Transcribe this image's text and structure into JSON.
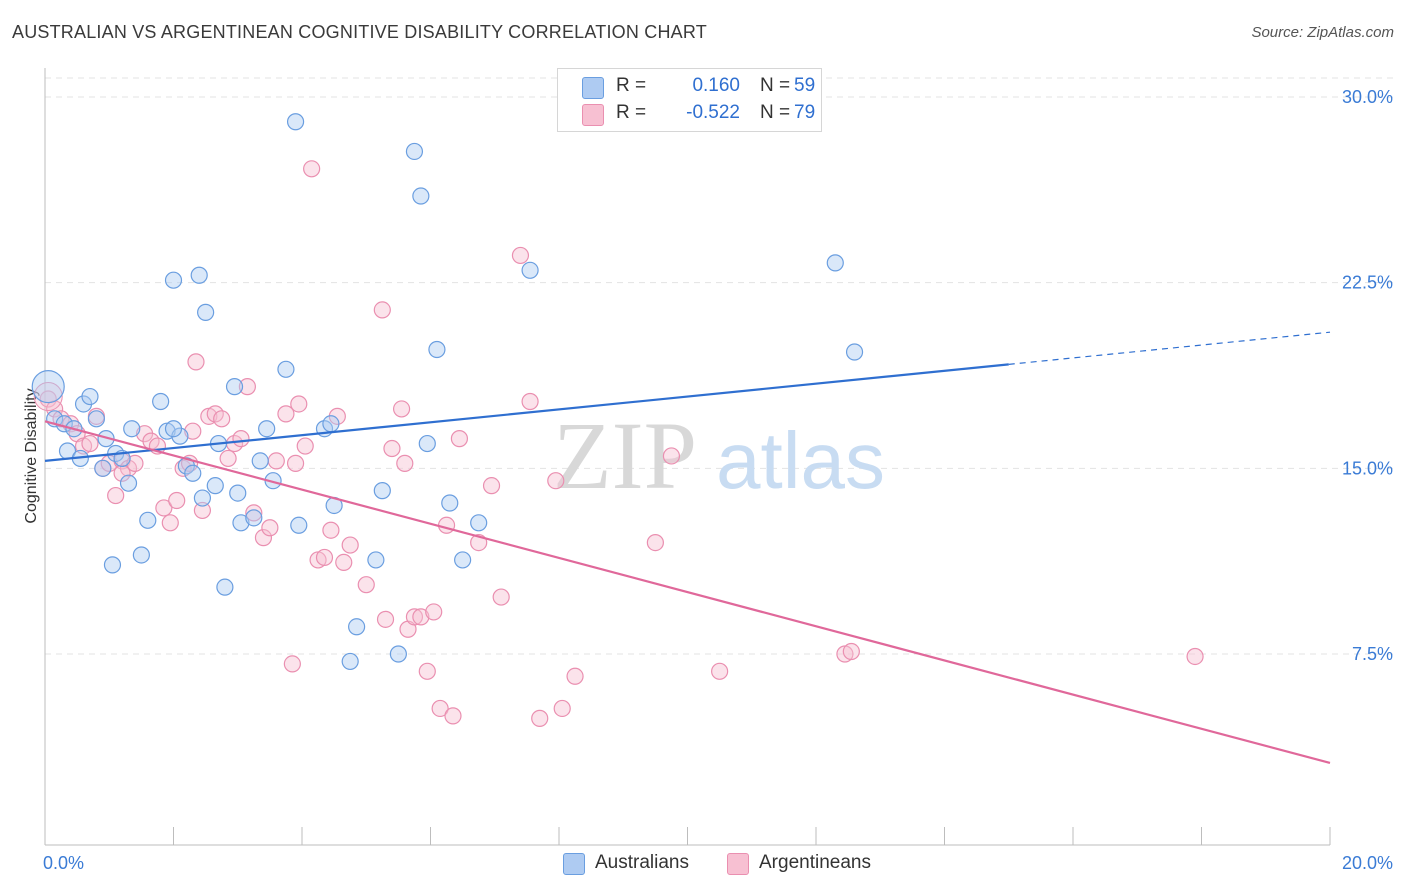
{
  "header": {
    "title": "AUSTRALIAN VS ARGENTINEAN COGNITIVE DISABILITY CORRELATION CHART",
    "source": "Source: ZipAtlas.com"
  },
  "legend": {
    "rows": [
      {
        "r_label": "R =",
        "r_value": "0.160",
        "n_label": "N =",
        "n_value": "59"
      },
      {
        "r_label": "R =",
        "r_value": "-0.522",
        "n_label": "N =",
        "n_value": "79"
      }
    ],
    "series_names": [
      "Australians",
      "Argentineans"
    ]
  },
  "watermark": {
    "zip": "ZIP",
    "atlas": "atlas"
  },
  "colors": {
    "blue_fill": "#aecbf2",
    "blue_stroke": "#6a9ee0",
    "blue_line": "#2f6fd0",
    "pink_fill": "#f7c0d2",
    "pink_stroke": "#ea8fb0",
    "pink_line": "#e0689a",
    "grid": "#e3e3e3",
    "axis_text": "#3a7bd5"
  },
  "chart_data": {
    "type": "scatter",
    "title": "AUSTRALIAN VS ARGENTINEAN COGNITIVE DISABILITY CORRELATION CHART",
    "xlabel": "",
    "ylabel": "Cognitive Disability",
    "xlim": [
      0,
      20
    ],
    "ylim": [
      0,
      31
    ],
    "x_tick_labels": [
      "0.0%",
      "20.0%"
    ],
    "y_ticks": [
      7.5,
      15.0,
      22.5,
      30.0
    ],
    "y_tick_labels": [
      "7.5%",
      "15.0%",
      "22.5%",
      "30.0%"
    ],
    "grid": "horizontal dashed",
    "legend_position": "top-center",
    "series": [
      {
        "name": "Australians",
        "r": 0.16,
        "n": 59,
        "trend": {
          "x0": 0,
          "y0": 15.3,
          "x1": 15.0,
          "y1": 19.2,
          "dashed_to_x": 20.0,
          "dashed_to_y": 20.5
        },
        "points": [
          [
            0.05,
            18.3
          ],
          [
            0.15,
            17.0
          ],
          [
            0.3,
            16.8
          ],
          [
            0.35,
            15.7
          ],
          [
            0.45,
            16.6
          ],
          [
            0.55,
            15.4
          ],
          [
            0.6,
            17.6
          ],
          [
            0.7,
            17.9
          ],
          [
            0.8,
            17.0
          ],
          [
            0.9,
            15.0
          ],
          [
            0.95,
            16.2
          ],
          [
            1.1,
            15.6
          ],
          [
            1.2,
            15.4
          ],
          [
            1.3,
            14.4
          ],
          [
            1.35,
            16.6
          ],
          [
            1.5,
            11.5
          ],
          [
            1.6,
            12.9
          ],
          [
            1.8,
            17.7
          ],
          [
            1.9,
            16.5
          ],
          [
            2.0,
            22.6
          ],
          [
            2.1,
            16.3
          ],
          [
            2.2,
            15.1
          ],
          [
            2.3,
            14.8
          ],
          [
            2.4,
            22.8
          ],
          [
            2.45,
            13.8
          ],
          [
            2.5,
            21.3
          ],
          [
            2.65,
            14.3
          ],
          [
            2.7,
            16.0
          ],
          [
            2.8,
            10.2
          ],
          [
            2.95,
            18.3
          ],
          [
            3.0,
            14.0
          ],
          [
            3.05,
            12.8
          ],
          [
            3.25,
            13.0
          ],
          [
            3.35,
            15.3
          ],
          [
            3.45,
            16.6
          ],
          [
            3.55,
            14.5
          ],
          [
            3.75,
            19.0
          ],
          [
            3.9,
            29.0
          ],
          [
            3.95,
            12.7
          ],
          [
            4.35,
            16.6
          ],
          [
            4.45,
            16.8
          ],
          [
            4.5,
            13.5
          ],
          [
            4.75,
            7.2
          ],
          [
            4.85,
            8.6
          ],
          [
            5.15,
            11.3
          ],
          [
            5.25,
            14.1
          ],
          [
            5.5,
            7.5
          ],
          [
            5.75,
            27.8
          ],
          [
            5.85,
            26.0
          ],
          [
            5.95,
            16.0
          ],
          [
            6.1,
            19.8
          ],
          [
            6.3,
            13.6
          ],
          [
            6.5,
            11.3
          ],
          [
            6.75,
            12.8
          ],
          [
            7.55,
            23.0
          ],
          [
            12.3,
            23.3
          ],
          [
            12.6,
            19.7
          ],
          [
            1.05,
            11.1
          ],
          [
            2.0,
            16.6
          ]
        ]
      },
      {
        "name": "Argentineans",
        "r": -0.522,
        "n": 79,
        "trend": {
          "x0": 0,
          "y0": 16.9,
          "x1": 20.0,
          "y1": 3.1
        },
        "points": [
          [
            0.05,
            17.8
          ],
          [
            0.15,
            17.4
          ],
          [
            0.25,
            17.0
          ],
          [
            0.4,
            16.8
          ],
          [
            0.5,
            16.4
          ],
          [
            0.6,
            15.9
          ],
          [
            0.7,
            16.0
          ],
          [
            0.8,
            17.1
          ],
          [
            0.9,
            15.0
          ],
          [
            1.0,
            15.2
          ],
          [
            1.1,
            13.9
          ],
          [
            1.2,
            15.3
          ],
          [
            1.3,
            15.0
          ],
          [
            1.4,
            15.2
          ],
          [
            1.55,
            16.4
          ],
          [
            1.65,
            16.1
          ],
          [
            1.75,
            15.9
          ],
          [
            1.85,
            13.4
          ],
          [
            1.95,
            12.8
          ],
          [
            2.05,
            13.7
          ],
          [
            2.15,
            15.0
          ],
          [
            2.25,
            15.2
          ],
          [
            2.35,
            19.3
          ],
          [
            2.45,
            13.3
          ],
          [
            2.55,
            17.1
          ],
          [
            2.65,
            17.2
          ],
          [
            2.75,
            17.0
          ],
          [
            2.85,
            15.4
          ],
          [
            2.95,
            16.0
          ],
          [
            3.05,
            16.2
          ],
          [
            3.15,
            18.3
          ],
          [
            3.25,
            13.2
          ],
          [
            3.4,
            12.2
          ],
          [
            3.5,
            12.6
          ],
          [
            3.6,
            15.3
          ],
          [
            3.75,
            17.2
          ],
          [
            3.85,
            7.1
          ],
          [
            3.95,
            17.6
          ],
          [
            4.05,
            15.9
          ],
          [
            4.15,
            27.1
          ],
          [
            4.25,
            11.3
          ],
          [
            4.35,
            11.4
          ],
          [
            4.45,
            12.5
          ],
          [
            4.55,
            17.1
          ],
          [
            4.65,
            11.2
          ],
          [
            4.75,
            11.9
          ],
          [
            5.0,
            10.3
          ],
          [
            5.25,
            21.4
          ],
          [
            5.3,
            8.9
          ],
          [
            5.4,
            15.8
          ],
          [
            5.55,
            17.4
          ],
          [
            5.65,
            8.5
          ],
          [
            5.75,
            9.0
          ],
          [
            5.85,
            9.0
          ],
          [
            5.95,
            6.8
          ],
          [
            6.05,
            9.2
          ],
          [
            6.15,
            5.3
          ],
          [
            6.25,
            12.7
          ],
          [
            6.35,
            5.0
          ],
          [
            6.45,
            16.2
          ],
          [
            6.75,
            12.0
          ],
          [
            6.95,
            14.3
          ],
          [
            7.1,
            9.8
          ],
          [
            7.4,
            23.6
          ],
          [
            7.55,
            17.7
          ],
          [
            7.7,
            4.9
          ],
          [
            7.95,
            14.5
          ],
          [
            8.05,
            5.3
          ],
          [
            8.25,
            6.6
          ],
          [
            9.5,
            12.0
          ],
          [
            9.75,
            15.5
          ],
          [
            10.5,
            6.8
          ],
          [
            12.45,
            7.5
          ],
          [
            12.55,
            7.6
          ],
          [
            17.9,
            7.4
          ],
          [
            5.6,
            15.2
          ],
          [
            2.3,
            16.5
          ],
          [
            1.2,
            14.8
          ],
          [
            3.9,
            15.2
          ]
        ]
      }
    ]
  }
}
